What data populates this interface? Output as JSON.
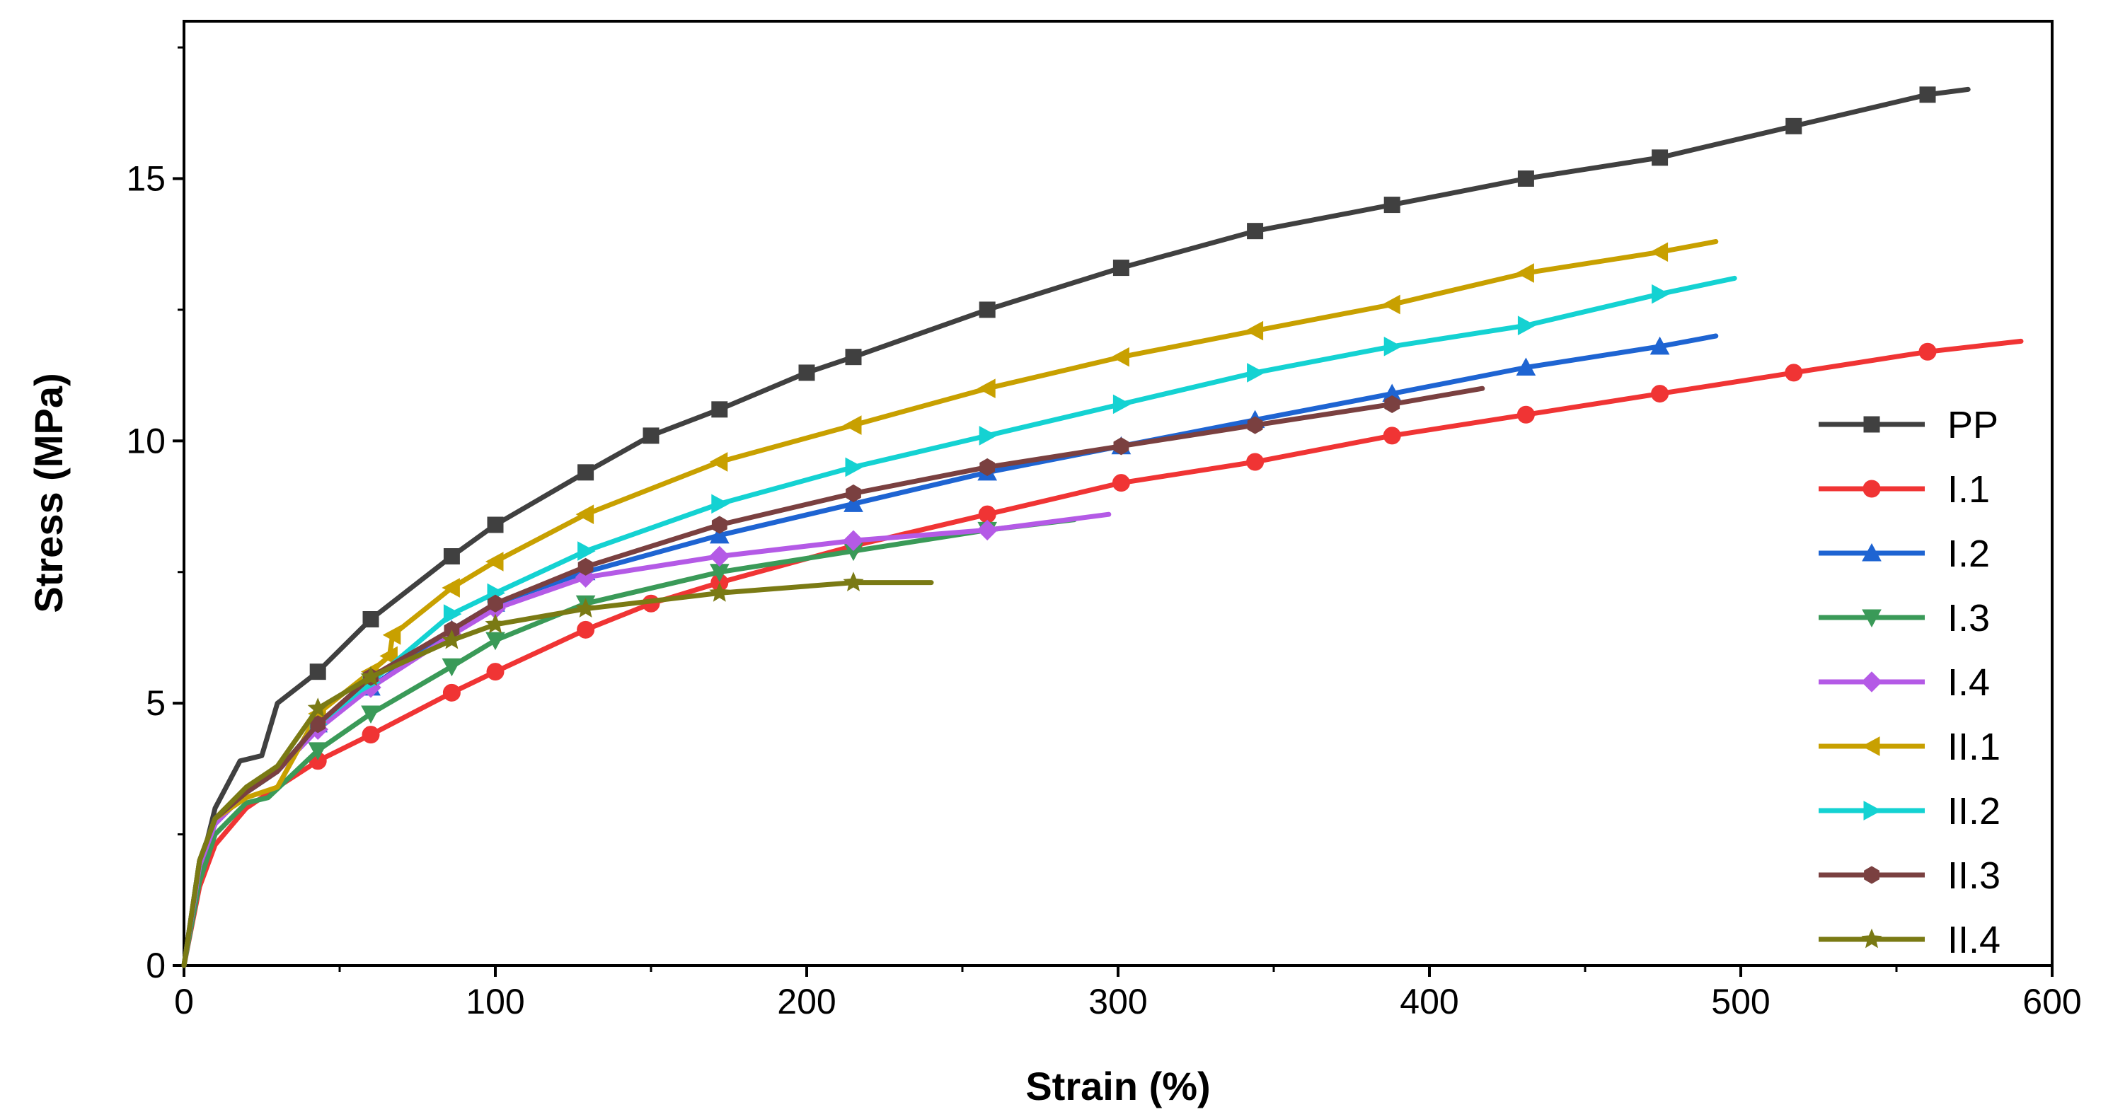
{
  "chart_data": {
    "type": "line",
    "title": "",
    "xlabel": "Strain  (%)",
    "ylabel": "Stress (MPa)",
    "xlim": [
      0,
      600
    ],
    "ylim": [
      0,
      18
    ],
    "x_ticks": [
      {
        "value": 0,
        "label": "0"
      },
      {
        "value": 100,
        "label": "100"
      },
      {
        "value": 200,
        "label": "200"
      },
      {
        "value": 300,
        "label": "300"
      },
      {
        "value": 400,
        "label": "400"
      },
      {
        "value": 500,
        "label": "500"
      },
      {
        "value": 600,
        "label": "600"
      }
    ],
    "y_ticks": [
      {
        "value": 0,
        "label": "0"
      },
      {
        "value": 5,
        "label": "5"
      },
      {
        "value": 10,
        "label": "10"
      },
      {
        "value": 15,
        "label": "15"
      }
    ],
    "grid": false,
    "legend_position": "right",
    "series": [
      {
        "name": "PP",
        "color": "#404040",
        "marker": "square",
        "x": [
          0,
          5,
          10,
          18,
          25,
          30,
          43,
          60,
          86,
          100,
          129,
          150,
          172,
          200,
          215,
          258,
          301,
          344,
          388,
          431,
          474,
          517,
          560,
          573
        ],
        "y": [
          0,
          1.8,
          3.0,
          3.9,
          4.0,
          5.0,
          5.6,
          6.6,
          7.8,
          8.4,
          9.4,
          10.1,
          10.6,
          11.3,
          11.6,
          12.5,
          13.3,
          14.0,
          14.5,
          15.0,
          15.4,
          16.0,
          16.6,
          16.7
        ]
      },
      {
        "name": "I.1",
        "color": "#f03434",
        "marker": "circle",
        "x": [
          0,
          5,
          10,
          20,
          30,
          43,
          60,
          86,
          100,
          129,
          150,
          172,
          215,
          258,
          301,
          344,
          388,
          431,
          474,
          517,
          560,
          590
        ],
        "y": [
          0,
          1.5,
          2.3,
          3.0,
          3.4,
          3.9,
          4.4,
          5.2,
          5.6,
          6.4,
          6.9,
          7.3,
          8.0,
          8.6,
          9.2,
          9.6,
          10.1,
          10.5,
          10.9,
          11.3,
          11.7,
          11.9
        ]
      },
      {
        "name": "I.2",
        "color": "#1e64d2",
        "marker": "triangle-up",
        "x": [
          0,
          5,
          10,
          20,
          30,
          43,
          60,
          86,
          100,
          129,
          172,
          215,
          258,
          301,
          344,
          388,
          431,
          474,
          492
        ],
        "y": [
          0,
          1.9,
          2.7,
          3.3,
          3.7,
          4.6,
          5.3,
          6.4,
          6.9,
          7.5,
          8.2,
          8.8,
          9.4,
          9.9,
          10.4,
          10.9,
          11.4,
          11.8,
          12.0
        ]
      },
      {
        "name": "I.3",
        "color": "#3a9a58",
        "marker": "triangle-down",
        "x": [
          0,
          5,
          10,
          20,
          27,
          43,
          60,
          86,
          100,
          129,
          172,
          215,
          258,
          286
        ],
        "y": [
          0,
          1.6,
          2.5,
          3.1,
          3.2,
          4.1,
          4.8,
          5.7,
          6.2,
          6.9,
          7.5,
          7.9,
          8.3,
          8.5
        ]
      },
      {
        "name": "I.4",
        "color": "#b45ae6",
        "marker": "diamond",
        "x": [
          0,
          5,
          10,
          20,
          30,
          43,
          60,
          86,
          100,
          129,
          172,
          215,
          258,
          297
        ],
        "y": [
          0,
          1.9,
          2.7,
          3.3,
          3.7,
          4.5,
          5.3,
          6.3,
          6.8,
          7.4,
          7.8,
          8.1,
          8.3,
          8.6
        ]
      },
      {
        "name": "II.1",
        "color": "#c8a000",
        "marker": "triangle-left",
        "x": [
          0,
          5,
          10,
          20,
          30,
          43,
          60,
          66,
          67,
          86,
          100,
          129,
          172,
          215,
          258,
          301,
          344,
          388,
          431,
          474,
          492
        ],
        "y": [
          0,
          2.0,
          2.8,
          3.2,
          3.4,
          4.8,
          5.6,
          5.9,
          6.3,
          7.2,
          7.7,
          8.6,
          9.6,
          10.3,
          11.0,
          11.6,
          12.1,
          12.6,
          13.2,
          13.6,
          13.8
        ]
      },
      {
        "name": "II.2",
        "color": "#14d2d2",
        "marker": "triangle-right",
        "x": [
          0,
          5,
          10,
          20,
          30,
          43,
          60,
          86,
          100,
          129,
          172,
          215,
          258,
          301,
          344,
          388,
          431,
          474,
          498
        ],
        "y": [
          0,
          2.0,
          2.8,
          3.3,
          3.7,
          4.6,
          5.4,
          6.7,
          7.1,
          7.9,
          8.8,
          9.5,
          10.1,
          10.7,
          11.3,
          11.8,
          12.2,
          12.8,
          13.1
        ]
      },
      {
        "name": "II.3",
        "color": "#7a4040",
        "marker": "hexagon",
        "x": [
          0,
          5,
          10,
          20,
          30,
          43,
          60,
          86,
          100,
          129,
          172,
          215,
          258,
          301,
          344,
          388,
          417
        ],
        "y": [
          0,
          2.0,
          2.8,
          3.3,
          3.7,
          4.6,
          5.5,
          6.4,
          6.9,
          7.6,
          8.4,
          9.0,
          9.5,
          9.9,
          10.3,
          10.7,
          11.0
        ]
      },
      {
        "name": "II.4",
        "color": "#7a7a14",
        "marker": "star",
        "x": [
          0,
          5,
          10,
          20,
          30,
          43,
          60,
          86,
          100,
          129,
          172,
          215,
          240
        ],
        "y": [
          0,
          2.0,
          2.8,
          3.4,
          3.8,
          4.9,
          5.5,
          6.2,
          6.5,
          6.8,
          7.1,
          7.3,
          7.3
        ]
      }
    ]
  }
}
